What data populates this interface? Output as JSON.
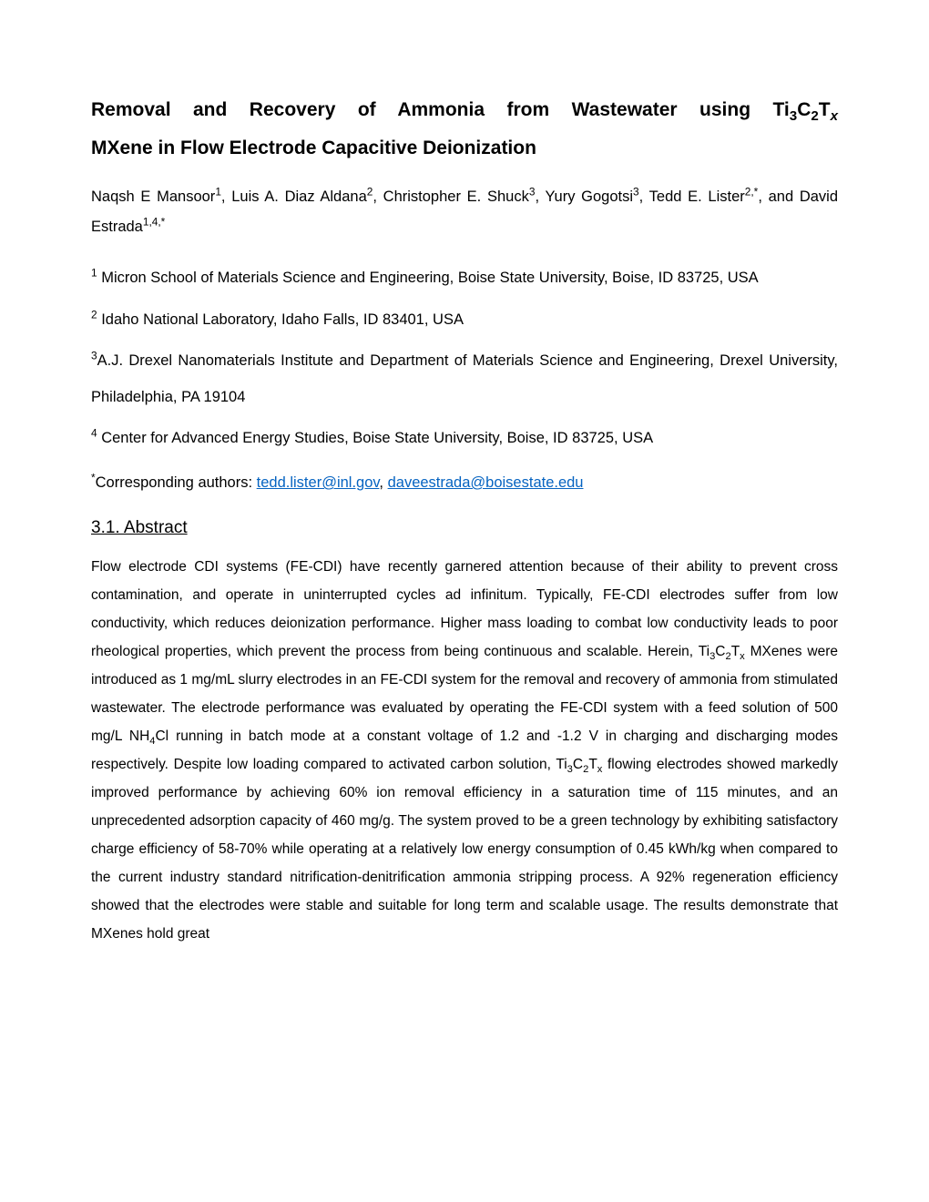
{
  "title": {
    "line1_pre": "Removal and Recovery of Ammonia from Wastewater using Ti",
    "line1_sub1": "3",
    "line1_mid1": "C",
    "line1_sub2": "2",
    "line1_mid2": "T",
    "line1_sub3": "x",
    "line2": "MXene in Flow Electrode Capacitive Deionization"
  },
  "authors": {
    "a1": "Naqsh E Mansoor",
    "a1_sup": "1",
    "sep1": ", ",
    "a2": "Luis A. Diaz Aldana",
    "a2_sup": "2",
    "sep2": ", ",
    "a3": "Christopher E. Shuck",
    "a3_sup": "3",
    "sep3": ", ",
    "a4": "Yury Gogotsi",
    "a4_sup": "3",
    "sep4": ", ",
    "a5": "Tedd E. Lister",
    "a5_sup": "2,*",
    "sep5": ", and ",
    "a6": "David Estrada",
    "a6_sup": "1,4,*"
  },
  "affiliations": {
    "aff1_sup": "1",
    "aff1_text": " Micron School of Materials Science and Engineering, Boise State University, Boise, ID 83725, USA",
    "aff2_sup": "2",
    "aff2_text": " Idaho National Laboratory, Idaho Falls, ID 83401, USA",
    "aff3_sup": "3",
    "aff3_text": "A.J. Drexel Nanomaterials Institute and Department of Materials Science and Engineering, Drexel University, Philadelphia, PA 19104",
    "aff4_sup": "4",
    "aff4_text": " Center for Advanced Energy Studies, Boise State University, Boise, ID 83725, USA"
  },
  "corresponding": {
    "sup": "*",
    "label": "Corresponding authors: ",
    "email1": "tedd.lister@inl.gov",
    "sep": ", ",
    "email2": "daveestrada@boisestate.edu"
  },
  "section_heading": "3.1. Abstract",
  "abstract": {
    "p1_a": "Flow electrode CDI systems (FE-CDI) have recently garnered attention because of their ability to prevent cross contamination, and operate in uninterrupted cycles ad infinitum. Typically, FE-CDI electrodes suffer from low conductivity, which reduces deionization performance. Higher mass loading to combat low conductivity leads to poor rheological properties, which prevent the process from being continuous and scalable. Herein, Ti",
    "p1_s1": "3",
    "p1_b": "C",
    "p1_s2": "2",
    "p1_c": "T",
    "p1_s3": "x",
    "p1_d": " MXenes were introduced as 1 mg/mL slurry electrodes in an FE-CDI system for the removal and recovery of ammonia from stimulated wastewater. The electrode performance was evaluated by operating the FE-CDI system with a feed solution of 500 mg/L NH",
    "p1_s4": "4",
    "p1_e": "Cl running in batch mode at a constant voltage of 1.2 and -1.2 V in charging and discharging modes respectively. Despite low loading compared to activated carbon solution, Ti",
    "p1_s5": "3",
    "p1_f": "C",
    "p1_s6": "2",
    "p1_g": "T",
    "p1_s7": "x",
    "p1_h": " flowing electrodes showed markedly improved performance by achieving 60% ion removal efficiency in a saturation time of 115 minutes, and an unprecedented adsorption capacity of 460 mg/g. The system proved to be a green technology by exhibiting satisfactory charge efficiency of 58-70% while operating at a relatively low energy consumption of 0.45 kWh/kg when compared to the current industry standard nitrification-denitrification ammonia stripping process. A 92% regeneration efficiency showed that the electrodes were stable and suitable for long term and scalable usage. The results demonstrate that MXenes hold great"
  },
  "colors": {
    "link": "#0563c1",
    "text": "#000000",
    "background": "#ffffff"
  }
}
